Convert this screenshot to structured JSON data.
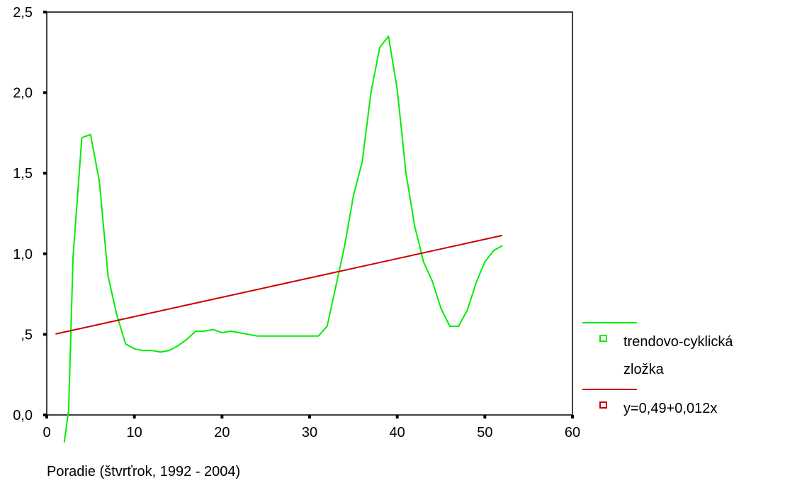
{
  "chart_data": {
    "type": "line",
    "xlabel": "Poradie (štvrťrok, 1992 - 2004)",
    "ylabel": "",
    "xlim": [
      0,
      60
    ],
    "ylim": [
      0,
      2.5
    ],
    "x_ticks": [
      0,
      10,
      20,
      30,
      40,
      50,
      60
    ],
    "x_tick_labels": [
      "0",
      "10",
      "20",
      "30",
      "40",
      "50",
      "60"
    ],
    "y_ticks": [
      0,
      0.5,
      1.0,
      1.5,
      2.0,
      2.5
    ],
    "y_tick_labels": [
      "0,0",
      ",5",
      "1,0",
      "1,5",
      "2,0",
      "2,5"
    ],
    "grid": false,
    "legend_position": "right",
    "series": [
      {
        "name": "trendovo-cyklická zložka",
        "legend_lines": [
          "trendovo-cyklická",
          "zložka"
        ],
        "color": "#00ee00",
        "x": [
          2,
          2.5,
          3,
          4,
          5,
          6,
          7,
          8,
          9,
          10,
          11,
          12,
          13,
          14,
          15,
          16,
          17,
          18,
          19,
          20,
          21,
          22,
          23,
          24,
          25,
          26,
          27,
          28,
          29,
          30,
          31,
          32,
          33,
          34,
          35,
          36,
          37,
          38,
          39,
          40,
          41,
          42,
          43,
          44,
          45,
          46,
          47,
          48,
          49,
          50,
          51,
          52
        ],
        "y": [
          -0.17,
          0.03,
          0.98,
          1.72,
          1.74,
          1.45,
          0.86,
          0.62,
          0.44,
          0.41,
          0.4,
          0.4,
          0.39,
          0.4,
          0.43,
          0.47,
          0.52,
          0.52,
          0.53,
          0.51,
          0.52,
          0.51,
          0.5,
          0.49,
          0.49,
          0.49,
          0.49,
          0.49,
          0.49,
          0.49,
          0.49,
          0.55,
          0.8,
          1.05,
          1.36,
          1.57,
          2.0,
          2.28,
          2.35,
          2.02,
          1.5,
          1.17,
          0.95,
          0.83,
          0.66,
          0.55,
          0.55,
          0.65,
          0.82,
          0.95,
          1.02,
          1.05
        ]
      },
      {
        "name": "y=0,49+0,012x",
        "legend_lines": [
          "y=0,49+0,012x"
        ],
        "color": "#cc0000",
        "x": [
          1,
          52
        ],
        "y": [
          0.502,
          1.114
        ]
      }
    ]
  }
}
